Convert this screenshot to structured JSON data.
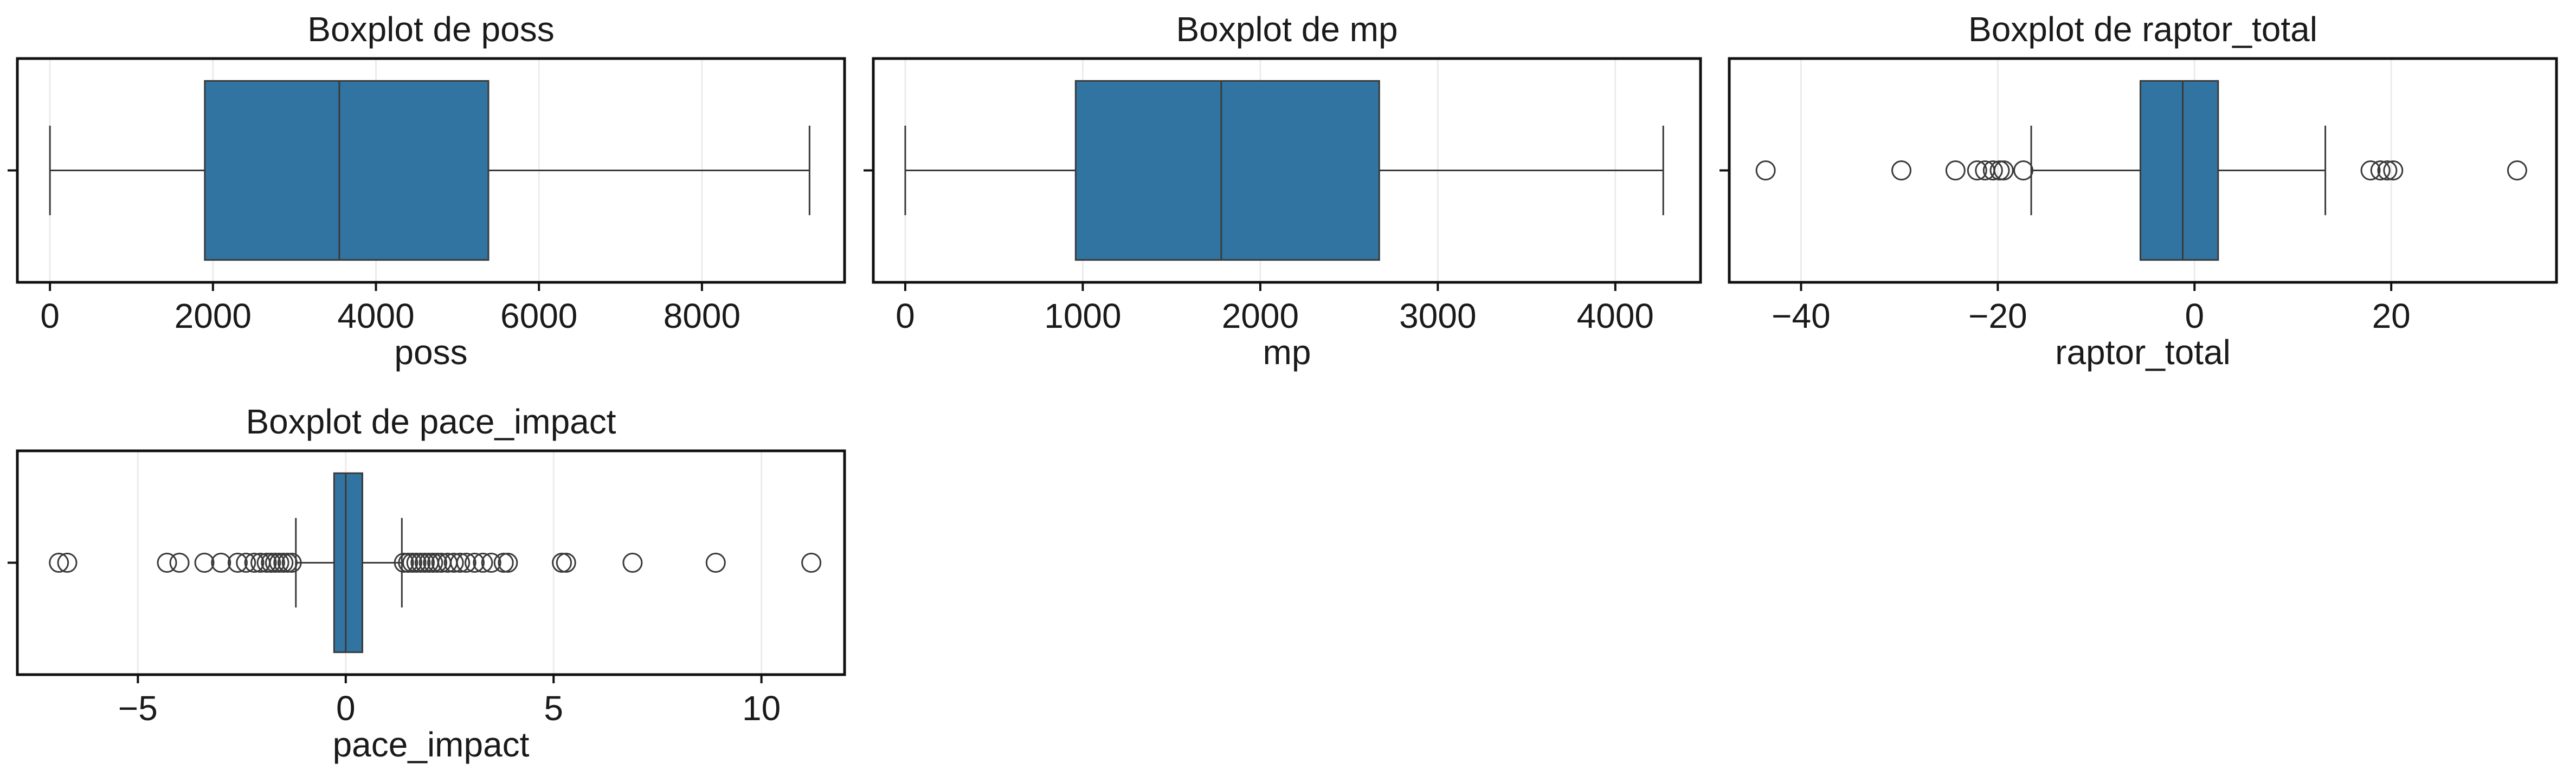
{
  "chart_data": [
    {
      "type": "boxplot",
      "title": "Boxplot de poss",
      "xlabel": "poss",
      "ylabel": "",
      "xlim": [
        -400,
        9750
      ],
      "xticks": [
        0,
        2000,
        4000,
        6000,
        8000
      ],
      "xtick_labels": [
        "0",
        "2000",
        "4000",
        "6000",
        "8000"
      ],
      "grid": true,
      "box": {
        "whisker_low": 0,
        "q1": 1900,
        "median": 3550,
        "q3": 5380,
        "whisker_high": 9320
      },
      "outliers": [],
      "color": "#3274a1"
    },
    {
      "type": "boxplot",
      "title": "Boxplot de mp",
      "xlabel": "mp",
      "ylabel": "",
      "xlim": [
        -180,
        4480
      ],
      "xticks": [
        0,
        1000,
        2000,
        3000,
        4000
      ],
      "xtick_labels": [
        "0",
        "1000",
        "2000",
        "3000",
        "4000"
      ],
      "grid": true,
      "box": {
        "whisker_low": 0,
        "q1": 960,
        "median": 1780,
        "q3": 2670,
        "whisker_high": 4270
      },
      "outliers": [],
      "color": "#3274a1"
    },
    {
      "type": "boxplot",
      "title": "Boxplot de raptor_total",
      "xlabel": "raptor_total",
      "ylabel": "",
      "xlim": [
        -47.3,
        36.8
      ],
      "xticks": [
        -40,
        -20,
        0,
        20
      ],
      "xtick_labels": [
        "−40",
        "−20",
        "0",
        "20"
      ],
      "grid": true,
      "box": {
        "whisker_low": -16.6,
        "q1": -5.5,
        "median": -1.2,
        "q3": 2.4,
        "whisker_high": 13.3
      },
      "outliers": [
        -43.6,
        -29.8,
        -24.3,
        -22.1,
        -21.3,
        -20.5,
        -19.8,
        -19.4,
        -17.4,
        17.9,
        18.9,
        19.6,
        20.2,
        32.8
      ],
      "color": "#3274a1"
    },
    {
      "type": "boxplot",
      "title": "Boxplot de pace_impact",
      "xlabel": "pace_impact",
      "ylabel": "",
      "xlim": [
        -7.9,
        12.0
      ],
      "xticks": [
        -5,
        0,
        5,
        10
      ],
      "xtick_labels": [
        "−5",
        "0",
        "5",
        "10"
      ],
      "grid": true,
      "box": {
        "whisker_low": -1.2,
        "q1": -0.28,
        "median": 0.0,
        "q3": 0.4,
        "whisker_high": 1.35
      },
      "outliers": [
        -6.9,
        -6.7,
        -4.3,
        -4.0,
        -3.4,
        -3.0,
        -2.6,
        -2.4,
        -2.2,
        -2.05,
        -1.9,
        -1.8,
        -1.7,
        -1.6,
        -1.5,
        -1.4,
        -1.3,
        1.4,
        1.5,
        1.6,
        1.7,
        1.8,
        1.9,
        2.0,
        2.1,
        2.2,
        2.3,
        2.45,
        2.6,
        2.75,
        2.9,
        3.1,
        3.3,
        3.5,
        3.8,
        3.9,
        5.2,
        5.3,
        6.9,
        8.9,
        11.2
      ],
      "color": "#3274a1"
    }
  ]
}
